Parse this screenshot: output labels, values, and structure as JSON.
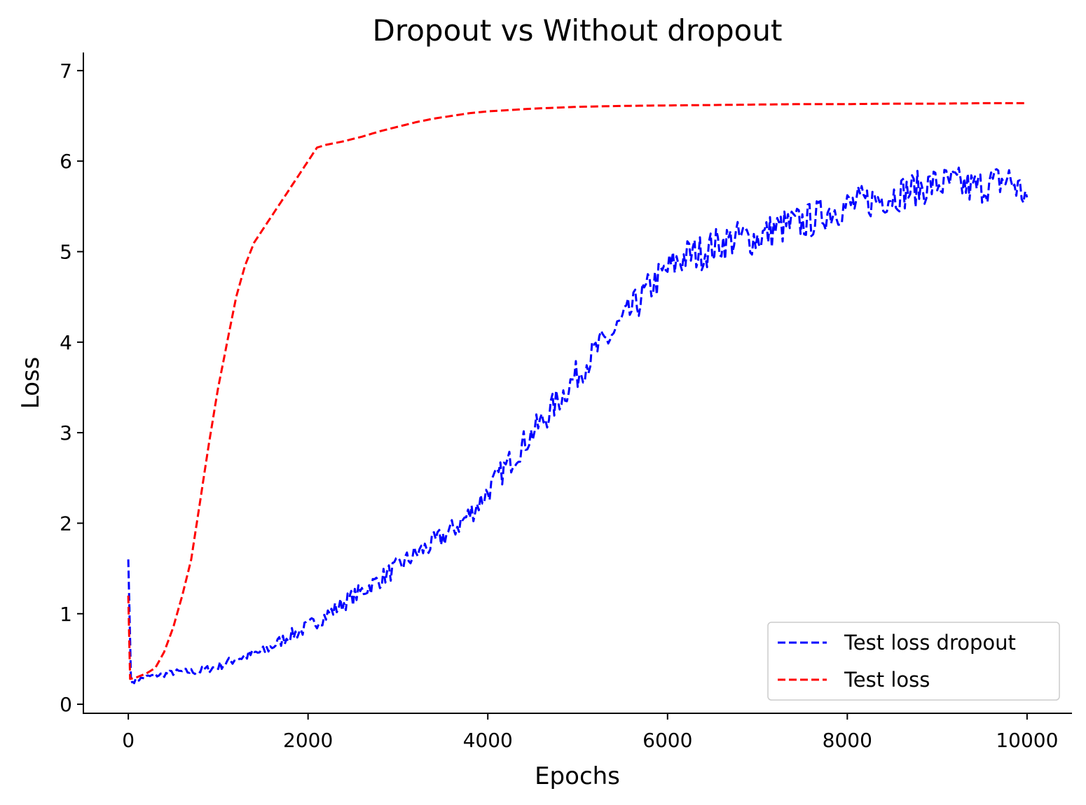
{
  "chart_data": {
    "type": "line",
    "title": "Dropout vs Without dropout",
    "xlabel": "Epochs",
    "ylabel": "Loss",
    "xlim": [
      -500,
      10500
    ],
    "ylim": [
      -0.1,
      7.2
    ],
    "xticks": [
      0,
      2000,
      4000,
      6000,
      8000,
      10000
    ],
    "yticks": [
      0,
      1,
      2,
      3,
      4,
      5,
      6,
      7
    ],
    "grid": false,
    "legend_position": "lower right",
    "series": [
      {
        "name": "Test loss dropout",
        "color": "#0000ff",
        "linestyle": "dashed",
        "noise": true,
        "x": [
          0,
          30,
          100,
          200,
          300,
          400,
          500,
          600,
          700,
          800,
          900,
          1000,
          1100,
          1200,
          1300,
          1400,
          1500,
          1600,
          1700,
          1800,
          1900,
          2000,
          2200,
          2400,
          2600,
          2800,
          3000,
          3200,
          3400,
          3600,
          3800,
          4000,
          4200,
          4400,
          4600,
          4800,
          5000,
          5200,
          5400,
          5600,
          5800,
          6000,
          6200,
          6400,
          6600,
          6800,
          7000,
          7200,
          7400,
          7600,
          7800,
          8000,
          8200,
          8400,
          8600,
          8800,
          9000,
          9200,
          9400,
          9600,
          9800,
          10000
        ],
        "y": [
          1.6,
          0.24,
          0.27,
          0.3,
          0.32,
          0.33,
          0.35,
          0.36,
          0.36,
          0.37,
          0.39,
          0.42,
          0.46,
          0.5,
          0.53,
          0.56,
          0.58,
          0.64,
          0.7,
          0.76,
          0.8,
          0.86,
          0.98,
          1.12,
          1.25,
          1.38,
          1.52,
          1.66,
          1.78,
          1.92,
          2.1,
          2.35,
          2.62,
          2.88,
          3.12,
          3.38,
          3.65,
          3.9,
          4.1,
          4.35,
          4.6,
          4.8,
          4.95,
          5.0,
          5.1,
          5.15,
          5.15,
          5.25,
          5.3,
          5.35,
          5.45,
          5.5,
          5.55,
          5.6,
          5.65,
          5.7,
          5.75,
          5.75,
          5.7,
          5.75,
          5.8,
          5.6
        ]
      },
      {
        "name": "Test loss",
        "color": "#ff0000",
        "linestyle": "dashed",
        "noise": false,
        "x": [
          0,
          20,
          100,
          200,
          300,
          400,
          500,
          600,
          700,
          800,
          900,
          1000,
          1100,
          1200,
          1300,
          1400,
          1500,
          1600,
          1700,
          1800,
          1900,
          2000,
          2100,
          2200,
          2400,
          2600,
          2800,
          3000,
          3200,
          3400,
          3600,
          3800,
          4000,
          4500,
          5000,
          5500,
          6000,
          6500,
          7000,
          7500,
          8000,
          8500,
          9000,
          9500,
          10000
        ],
        "y": [
          1.2,
          0.28,
          0.3,
          0.34,
          0.4,
          0.58,
          0.85,
          1.2,
          1.6,
          2.25,
          2.9,
          3.5,
          4.0,
          4.5,
          4.85,
          5.1,
          5.25,
          5.4,
          5.55,
          5.7,
          5.85,
          6.0,
          6.15,
          6.18,
          6.22,
          6.27,
          6.33,
          6.38,
          6.43,
          6.47,
          6.5,
          6.53,
          6.55,
          6.58,
          6.6,
          6.61,
          6.615,
          6.62,
          6.625,
          6.63,
          6.63,
          6.635,
          6.635,
          6.64,
          6.64
        ]
      }
    ]
  }
}
